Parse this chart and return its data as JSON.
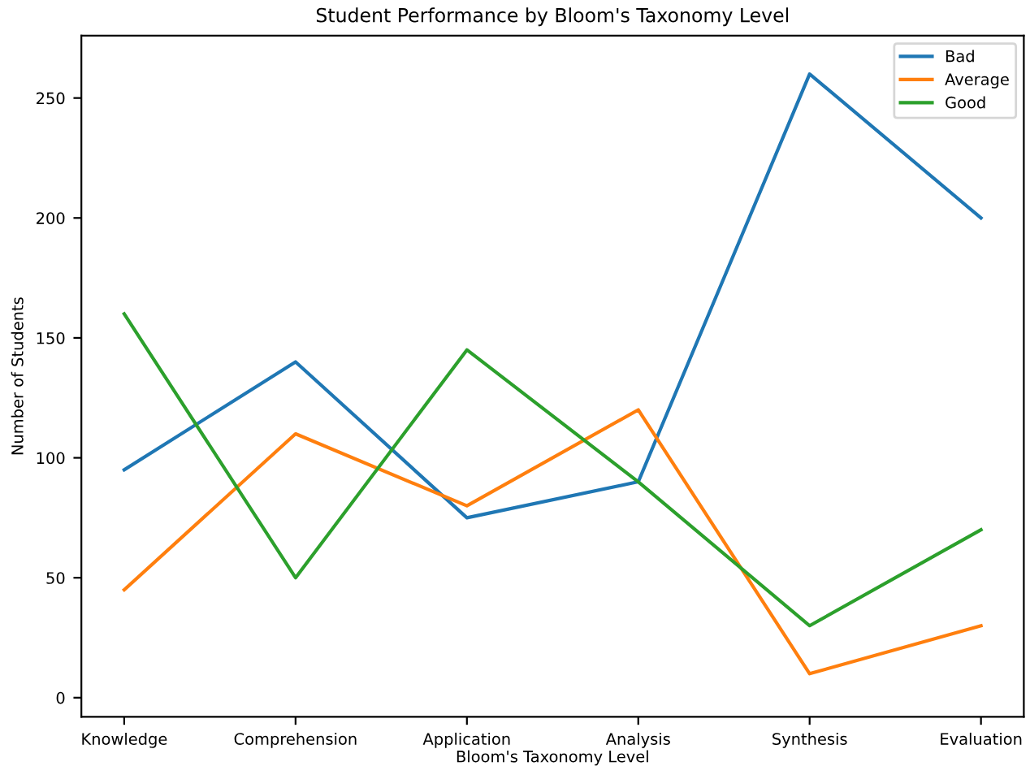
{
  "chart_data": {
    "type": "line",
    "title": "Student Performance by Bloom's Taxonomy Level",
    "xlabel": "Bloom's Taxonomy Level",
    "ylabel": "Number of Students",
    "categories": [
      "Knowledge",
      "Comprehension",
      "Application",
      "Analysis",
      "Synthesis",
      "Evaluation"
    ],
    "series": [
      {
        "name": "Bad",
        "color": "#1f77b4",
        "values": [
          95,
          140,
          75,
          90,
          260,
          200
        ]
      },
      {
        "name": "Average",
        "color": "#ff7f0e",
        "values": [
          45,
          110,
          80,
          120,
          10,
          30
        ]
      },
      {
        "name": "Good",
        "color": "#2ca02c",
        "values": [
          160,
          50,
          145,
          90,
          30,
          70
        ]
      }
    ],
    "ylim": [
      -8,
      276
    ],
    "yticks": [
      0,
      50,
      100,
      150,
      200,
      250
    ],
    "grid": false,
    "legend": "top right",
    "marker": "none",
    "line_style": "solid"
  }
}
